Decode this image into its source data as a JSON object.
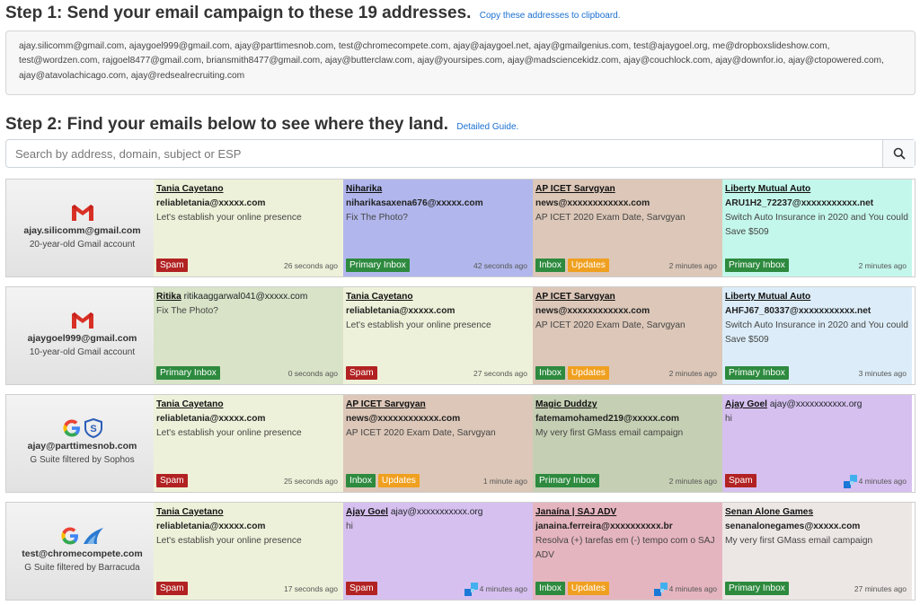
{
  "step1": {
    "title": "Step 1: Send your email campaign to these 19 addresses.",
    "copy_link": "Copy these addresses to clipboard.",
    "addresses": "ajay.silicomm@gmail.com, ajaygoel999@gmail.com, ajay@parttimesnob.com, test@chromecompete.com, ajay@ajaygoel.net, ajay@gmailgenius.com, test@ajaygoel.org, me@dropboxslideshow.com, test@wordzen.com, rajgoel8477@gmail.com, briansmith8477@gmail.com, ajay@butterclaw.com, ajay@yoursipes.com, ajay@madsciencekidz.com, ajay@couchlock.com, ajay@downfor.io, ajay@ctopowered.com, ajay@atavolachicago.com, ajay@redsealrecruiting.com"
  },
  "step2": {
    "title": "Step 2: Find your emails below to see where they land.",
    "guide_link": "Detailed Guide."
  },
  "search": {
    "placeholder": "Search by address, domain, subject or ESP"
  },
  "colors": {
    "tania": "#eef1d9",
    "niharika": "#b1b7ec",
    "apicet": "#dcc7b8",
    "liberty1": "#c4f7eb",
    "ritika": "#d8e3c7",
    "liberty2": "#dcedf9",
    "magic": "#c5cfb3",
    "ajaygoel": "#d6c0ef",
    "janaina": "#e5b5bf",
    "senan": "#ece7e5"
  },
  "rows": [
    {
      "account": {
        "email": "ajay.silicomm@gmail.com",
        "desc": "20-year-old Gmail account",
        "logo": "gmail-icon"
      },
      "cells": [
        {
          "from": "Tania Cayetano",
          "addr": "reliabletania@xxxxx.com",
          "subject": "Let's establish your online presence",
          "badges": [
            "Spam"
          ],
          "time": "26 seconds ago"
        },
        {
          "from": "Niharika",
          "addr": "niharikasaxena676@xxxxx.com",
          "subject": "Fix The Photo?",
          "badges": [
            "Primary Inbox"
          ],
          "time": "42 seconds ago"
        },
        {
          "from": "AP ICET Sarvgyan",
          "addr": "news@xxxxxxxxxxxx.com",
          "subject": "AP ICET 2020 Exam Date, Sarvgyan",
          "badges": [
            "Inbox",
            "Updates"
          ],
          "time": "2 minutes ago"
        },
        {
          "from": "Liberty Mutual Auto",
          "addr": "ARU1H2_72237@xxxxxxxxxxx.net",
          "subject": "Switch Auto Insurance in 2020 and You could Save $509",
          "badges": [
            "Primary Inbox"
          ],
          "time": "2 minutes ago"
        }
      ]
    },
    {
      "account": {
        "email": "ajaygoel999@gmail.com",
        "desc": "10-year-old Gmail account",
        "logo": "gmail-icon"
      },
      "cells": [
        {
          "from": "Ritika",
          "from_addr": "ritikaaggarwal041@xxxxx.com",
          "addr": "",
          "subject": "Fix The Photo?",
          "badges": [
            "Primary Inbox"
          ],
          "time": "0 seconds ago"
        },
        {
          "from": "Tania Cayetano",
          "addr": "reliabletania@xxxxx.com",
          "subject": "Let's establish your online presence",
          "badges": [
            "Spam"
          ],
          "time": "27 seconds ago"
        },
        {
          "from": "AP ICET Sarvgyan",
          "addr": "news@xxxxxxxxxxxx.com",
          "subject": "AP ICET 2020 Exam Date, Sarvgyan",
          "badges": [
            "Inbox",
            "Updates"
          ],
          "time": "2 minutes ago"
        },
        {
          "from": "Liberty Mutual Auto",
          "addr": "AHFJ67_80337@xxxxxxxxxxx.net",
          "subject": "Switch Auto Insurance in 2020 and You could Save $509",
          "badges": [
            "Primary Inbox"
          ],
          "time": "3 minutes ago"
        }
      ]
    },
    {
      "account": {
        "email": "ajay@parttimesnob.com",
        "desc": "G Suite filtered by Sophos",
        "logo": "google-sophos-icon"
      },
      "cells": [
        {
          "from": "Tania Cayetano",
          "addr": "reliabletania@xxxxx.com",
          "subject": "Let's establish your online presence",
          "badges": [
            "Spam"
          ],
          "time": "25 seconds ago"
        },
        {
          "from": "AP ICET Sarvgyan",
          "addr": "news@xxxxxxxxxxxx.com",
          "subject": "AP ICET 2020 Exam Date, Sarvgyan",
          "badges": [
            "Inbox",
            "Updates"
          ],
          "time": "1 minute ago"
        },
        {
          "from": "Magic Duddzy",
          "addr": "fatemamohamed219@xxxxx.com",
          "subject": "My very first GMass email campaign",
          "badges": [
            "Primary Inbox"
          ],
          "time": "2 minutes ago"
        },
        {
          "from": "Ajay Goel",
          "from_addr": "ajay@xxxxxxxxxxx.org",
          "addr": "",
          "subject": "hi",
          "badges": [
            "Spam"
          ],
          "time": "4 minutes ago",
          "tag_icon": true
        }
      ]
    },
    {
      "account": {
        "email": "test@chromecompete.com",
        "desc": "G Suite filtered by Barracuda",
        "logo": "google-barracuda-icon"
      },
      "cells": [
        {
          "from": "Tania Cayetano",
          "addr": "reliabletania@xxxxx.com",
          "subject": "Let's establish your online presence",
          "badges": [
            "Spam"
          ],
          "time": "17 seconds ago"
        },
        {
          "from": "Ajay Goel",
          "from_addr": "ajay@xxxxxxxxxxx.org",
          "addr": "",
          "subject": "hi",
          "badges": [
            "Spam"
          ],
          "time": "4 minutes ago",
          "tag_icon": true
        },
        {
          "from": "Janaína | SAJ ADV",
          "addr": "janaina.ferreira@xxxxxxxxxx.br",
          "subject": "Resolva (+) tarefas em (-) tempo com o SAJ ADV",
          "badges": [
            "Inbox",
            "Updates"
          ],
          "time": "4 minutes ago",
          "tag_icon": true
        },
        {
          "from": "Senan Alone Games",
          "addr": "senanalonegames@xxxxx.com",
          "subject": "My very first GMass email campaign",
          "badges": [
            "Primary Inbox"
          ],
          "time": "27 minutes ago"
        }
      ]
    }
  ]
}
